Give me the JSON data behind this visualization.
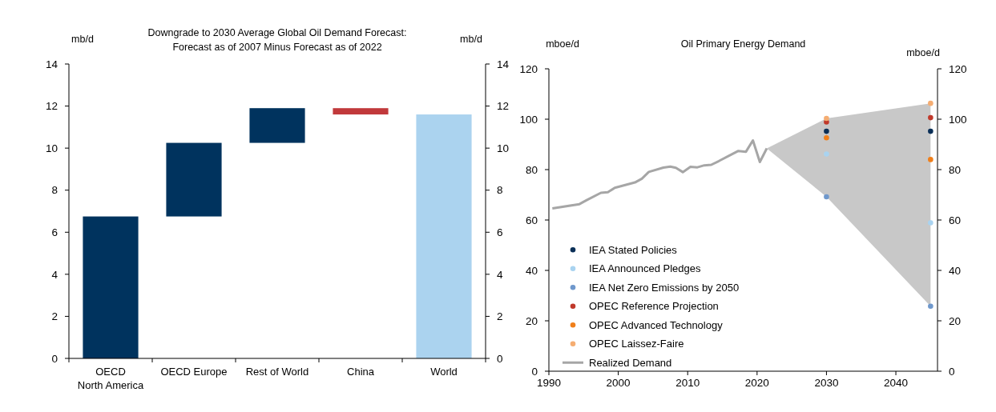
{
  "chart_data": [
    {
      "type": "bar",
      "title": "Downgrade to 2030 Average Global Oil Demand Forecast:\nForecast as of 2007 Minus Forecast as of 2022",
      "ylabel": "mb/d",
      "y2label": "mb/d",
      "categories": [
        "OECD North America",
        "OECD Europe",
        "Rest of World",
        "China",
        "World"
      ],
      "values": [
        6.75,
        3.5,
        1.65,
        -0.3,
        11.6
      ],
      "base": [
        0,
        6.75,
        10.25,
        11.9,
        0
      ],
      "colors": [
        "#00335e",
        "#00335e",
        "#00335e",
        "#c1393b",
        "#abd3ef"
      ],
      "ylim": [
        0,
        14
      ],
      "yticks": [
        0,
        2,
        4,
        6,
        8,
        10,
        12,
        14
      ],
      "y2lim": [
        0,
        14
      ],
      "y2ticks": [
        0,
        2,
        4,
        6,
        8,
        10,
        12,
        14
      ],
      "grid": false,
      "legend": false
    },
    {
      "type": "scatter",
      "title": "Oil Primary Energy Demand",
      "ylabel": "mboe/d",
      "y2label": "mboe/d",
      "xlim": [
        1990,
        2046
      ],
      "xticks": [
        1990,
        2000,
        2010,
        2020,
        2030,
        2040
      ],
      "ylim": [
        0,
        120
      ],
      "yticks": [
        0,
        20,
        40,
        60,
        80,
        100,
        120
      ],
      "y2lim": [
        0,
        120
      ],
      "y2ticks": [
        0,
        20,
        40,
        60,
        80,
        100,
        120
      ],
      "grid": false,
      "legend": "bottom left",
      "series": [
        {
          "type": "line",
          "color": "#c8c8c8",
          "x": [
            2021.4,
            2030,
            2045
          ],
          "values": [
            null,
            null,
            null
          ],
          "upper": [
            88.4,
            100.3,
            106.3
          ],
          "lower": [
            88.4,
            69.2,
            25.8
          ]
        },
        {
          "name": "IEA Stated Policies",
          "color": "#0a2f57",
          "marker": "circle",
          "x": [
            2030,
            2045
          ],
          "values": [
            95.2,
            95.2
          ]
        },
        {
          "name": "IEA Announced Pledges",
          "color": "#a9d3f0",
          "marker": "circle",
          "x": [
            2030,
            2045
          ],
          "values": [
            86.2,
            58.9
          ]
        },
        {
          "name": "IEA Net Zero Emissions by 2050",
          "color": "#6f98cc",
          "marker": "circle",
          "x": [
            2030,
            2045
          ],
          "values": [
            69.2,
            25.8
          ]
        },
        {
          "name": "OPEC Reference Projection",
          "color": "#c0392b",
          "marker": "circle",
          "x": [
            2030,
            2045
          ],
          "values": [
            98.9,
            100.6
          ]
        },
        {
          "name": "OPEC Advanced Technology",
          "color": "#f07f1a",
          "marker": "circle",
          "x": [
            2030,
            2045
          ],
          "values": [
            92.6,
            84.0
          ]
        },
        {
          "name": "OPEC Laissez-Faire",
          "color": "#f5ad72",
          "marker": "circle",
          "x": [
            2030,
            2045
          ],
          "values": [
            100.3,
            106.3
          ]
        },
        {
          "name": "Realized Demand",
          "type": "line",
          "color": "#a6a6a6",
          "line_style": "solid",
          "marker": "none",
          "x": [
            1990.5,
            1994.4,
            1995.4,
            1997.5,
            1998.5,
            1999.5,
            2002.4,
            2003.4,
            2004.4,
            2006.5,
            2007.5,
            2008.3,
            2009.3,
            2010.4,
            2011.4,
            2012.4,
            2013.4,
            2014.5,
            2016.3,
            2017.3,
            2018.4,
            2019.4,
            2020.4,
            2021.4
          ],
          "values": [
            64.6,
            66.3,
            67.8,
            70.8,
            71.0,
            72.8,
            74.9,
            76.4,
            79.1,
            80.8,
            81.2,
            80.7,
            79.0,
            81.1,
            80.9,
            81.7,
            81.9,
            83.4,
            86.0,
            87.4,
            87.1,
            91.6,
            83.0,
            88.4
          ]
        }
      ]
    }
  ]
}
